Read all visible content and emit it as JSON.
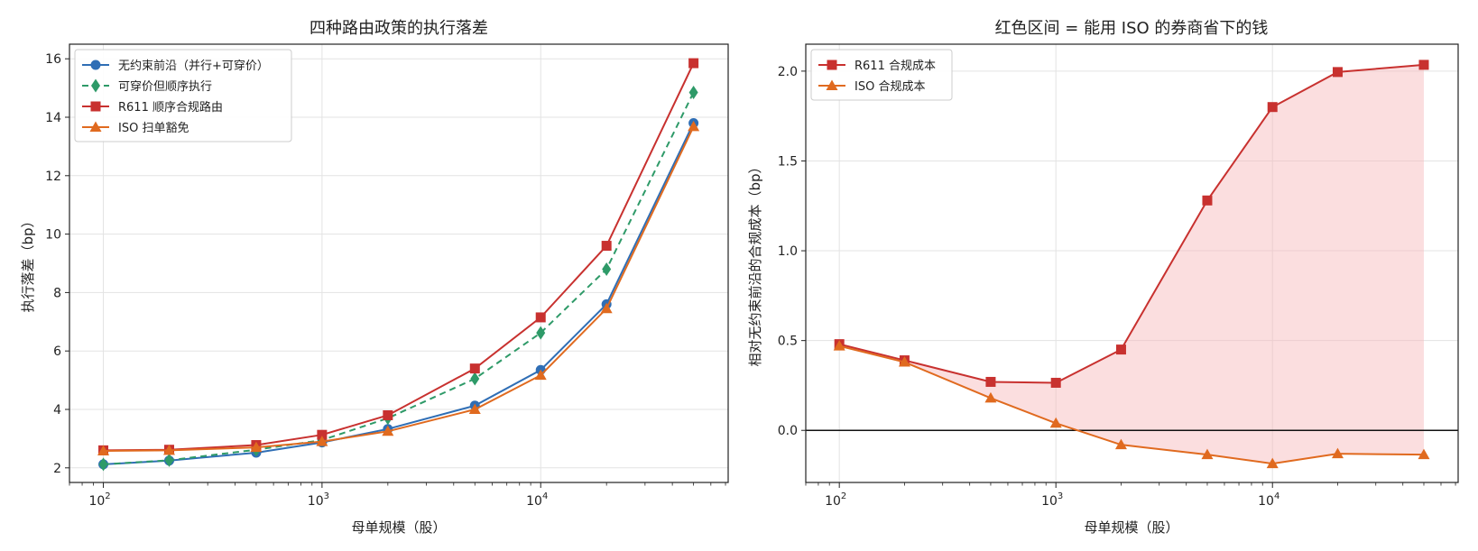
{
  "chart_data": [
    {
      "type": "line",
      "title": "四种路由政策的执行落差",
      "xlabel": "母单规模（股）",
      "ylabel": "执行落差（bp）",
      "xscale": "log",
      "xlim": [
        70,
        72000
      ],
      "ylim": [
        1.5,
        16.5
      ],
      "yticks": [
        "2",
        "4",
        "6",
        "8",
        "10",
        "12",
        "14",
        "16"
      ],
      "xticks": [
        {
          "base": "10",
          "exp": "2"
        },
        {
          "base": "10",
          "exp": "3"
        },
        {
          "base": "10",
          "exp": "4"
        }
      ],
      "grid": true,
      "legend": "top-left",
      "x": [
        100,
        200,
        500,
        1000,
        2000,
        5000,
        10000,
        20000,
        50000
      ],
      "series": [
        {
          "name": "无约束前沿（并行+可穿价）",
          "color": "#2f6eb5",
          "marker": "circle",
          "dash": false,
          "values": [
            2.12,
            2.25,
            2.52,
            2.87,
            3.33,
            4.13,
            5.35,
            7.6,
            13.8
          ]
        },
        {
          "name": "可穿价但顺序执行",
          "color": "#2e9a68",
          "marker": "diamond",
          "dash": true,
          "values": [
            2.12,
            2.26,
            2.62,
            2.95,
            3.7,
            5.05,
            6.62,
            8.8,
            14.85
          ]
        },
        {
          "name": "R611 顺序合规路由",
          "color": "#c8312f",
          "marker": "square",
          "dash": false,
          "values": [
            2.6,
            2.62,
            2.78,
            3.13,
            3.8,
            5.4,
            7.15,
            9.6,
            15.85
          ]
        },
        {
          "name": "ISO 扫单豁免",
          "color": "#e06a1f",
          "marker": "triangle",
          "dash": false,
          "values": [
            2.58,
            2.6,
            2.7,
            2.9,
            3.25,
            4.0,
            5.17,
            7.45,
            13.68
          ]
        }
      ]
    },
    {
      "type": "line",
      "title": "红色区间 = 能用 ISO 的券商省下的钱",
      "xlabel": "母单规模（股）",
      "ylabel": "相对无约束前沿的合规成本（bp）",
      "xscale": "log",
      "xlim": [
        70,
        72000
      ],
      "ylim": [
        -0.29,
        2.15
      ],
      "yticks": [
        "0.0",
        "0.5",
        "1.0",
        "1.5",
        "2.0"
      ],
      "xticks": [
        {
          "base": "10",
          "exp": "2"
        },
        {
          "base": "10",
          "exp": "3"
        },
        {
          "base": "10",
          "exp": "4"
        }
      ],
      "grid": true,
      "legend": "top-left",
      "fill_between": {
        "color": "#f7b5b8",
        "opacity": 0.45
      },
      "zero_line": true,
      "x": [
        100,
        200,
        500,
        1000,
        2000,
        5000,
        10000,
        20000,
        50000
      ],
      "series": [
        {
          "name": "R611 合规成本",
          "color": "#c8312f",
          "marker": "square",
          "dash": false,
          "values": [
            0.48,
            0.39,
            0.27,
            0.265,
            0.45,
            1.28,
            1.8,
            1.995,
            2.035
          ]
        },
        {
          "name": "ISO 合规成本",
          "color": "#e06a1f",
          "marker": "triangle",
          "dash": false,
          "values": [
            0.47,
            0.38,
            0.18,
            0.04,
            -0.08,
            -0.135,
            -0.185,
            -0.13,
            -0.135
          ]
        }
      ]
    }
  ]
}
